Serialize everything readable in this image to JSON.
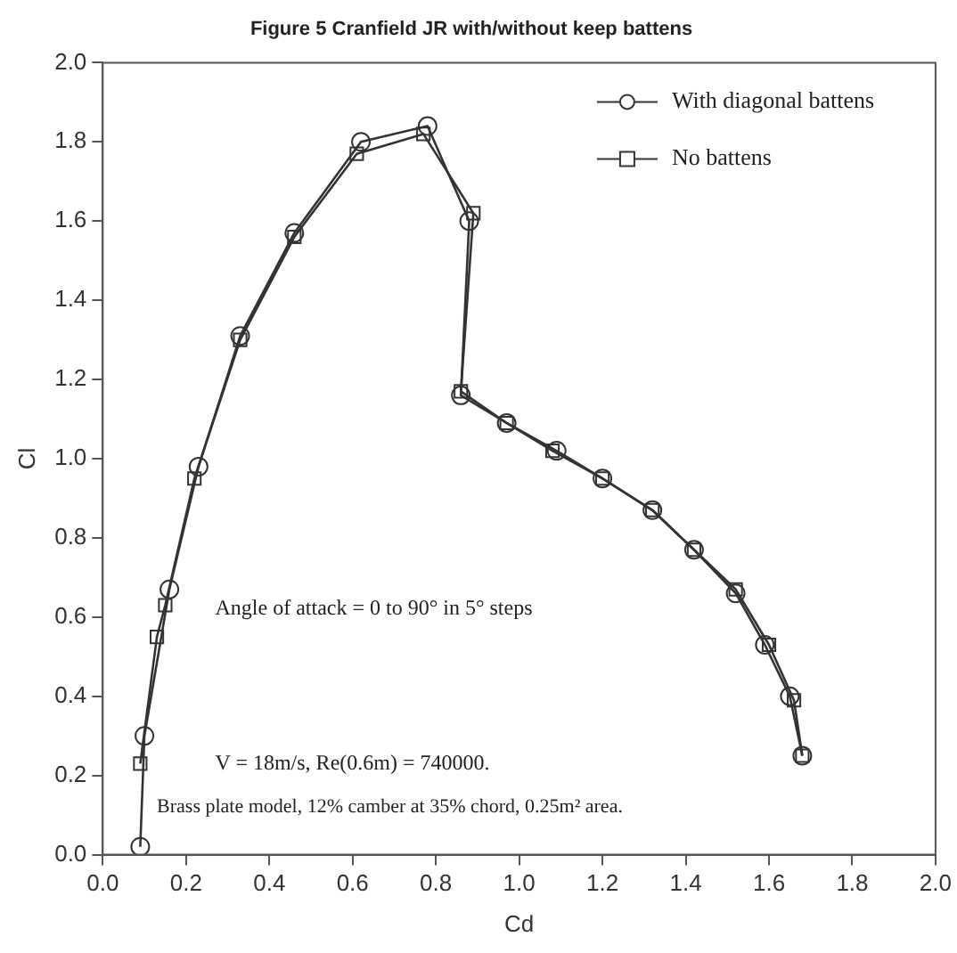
{
  "chart_data": {
    "type": "line",
    "title": "Figure 5 Cranfield JR with/without keep battens",
    "xlabel": "Cd",
    "ylabel": "Cl",
    "xlim": [
      0,
      2
    ],
    "xticks": [
      {
        "value": 0,
        "label": "0.0"
      },
      {
        "value": 0.2,
        "label": "0.2"
      },
      {
        "value": 0.4,
        "label": "0.4"
      },
      {
        "value": 0.6,
        "label": "0.6"
      },
      {
        "value": 0.8,
        "label": "0.8"
      },
      {
        "value": 1,
        "label": "1.0"
      },
      {
        "value": 1.2,
        "label": "1.2"
      },
      {
        "value": 1.4,
        "label": "1.4"
      },
      {
        "value": 1.6,
        "label": "1.6"
      },
      {
        "value": 1.8,
        "label": "1.8"
      },
      {
        "value": 2,
        "label": "2.0"
      }
    ],
    "ylim": [
      0,
      2
    ],
    "yticks": [
      {
        "value": 0,
        "label": "0.0"
      },
      {
        "value": 0.2,
        "label": "0.2"
      },
      {
        "value": 0.4,
        "label": "0.4"
      },
      {
        "value": 0.6,
        "label": "0.6"
      },
      {
        "value": 0.8,
        "label": "0.8"
      },
      {
        "value": 1,
        "label": "1.0"
      },
      {
        "value": 1.2,
        "label": "1.2"
      },
      {
        "value": 1.4,
        "label": "1.4"
      },
      {
        "value": 1.6,
        "label": "1.6"
      },
      {
        "value": 1.8,
        "label": "1.8"
      },
      {
        "value": 2,
        "label": "2.0"
      }
    ],
    "grid": false,
    "legend": "top right",
    "line_style": "solid",
    "series": [
      {
        "name": "With diagonal battens",
        "color": "#333333",
        "marker": "circle",
        "x": [
          0.09,
          0.1,
          0.16,
          0.23,
          0.33,
          0.46,
          0.62,
          0.78,
          0.88,
          0.86,
          0.97,
          1.09,
          1.2,
          1.32,
          1.42,
          1.52,
          1.59,
          1.65,
          1.68
        ],
        "values": [
          0.02,
          0.3,
          0.67,
          0.98,
          1.31,
          1.57,
          1.8,
          1.84,
          1.6,
          1.16,
          1.09,
          1.02,
          0.95,
          0.87,
          0.77,
          0.66,
          0.53,
          0.4,
          0.25
        ]
      },
      {
        "name": "No battens",
        "color": "#333333",
        "marker": "square",
        "x": [
          0.09,
          0.13,
          0.15,
          0.22,
          0.33,
          0.46,
          0.61,
          0.77,
          0.89,
          0.86,
          0.97,
          1.08,
          1.2,
          1.32,
          1.42,
          1.52,
          1.6,
          1.66,
          1.68
        ],
        "values": [
          0.23,
          0.55,
          0.63,
          0.95,
          1.3,
          1.56,
          1.77,
          1.82,
          1.62,
          1.17,
          1.09,
          1.02,
          0.95,
          0.87,
          0.77,
          0.67,
          0.53,
          0.39,
          0.25
        ]
      }
    ],
    "annotations": [
      "Angle of attack = 0 to 90° in 5° steps",
      "V = 18m/s, Re(0.6m) = 740000.",
      "Brass plate model, 12% camber at 35% chord, 0.25m² area."
    ]
  }
}
